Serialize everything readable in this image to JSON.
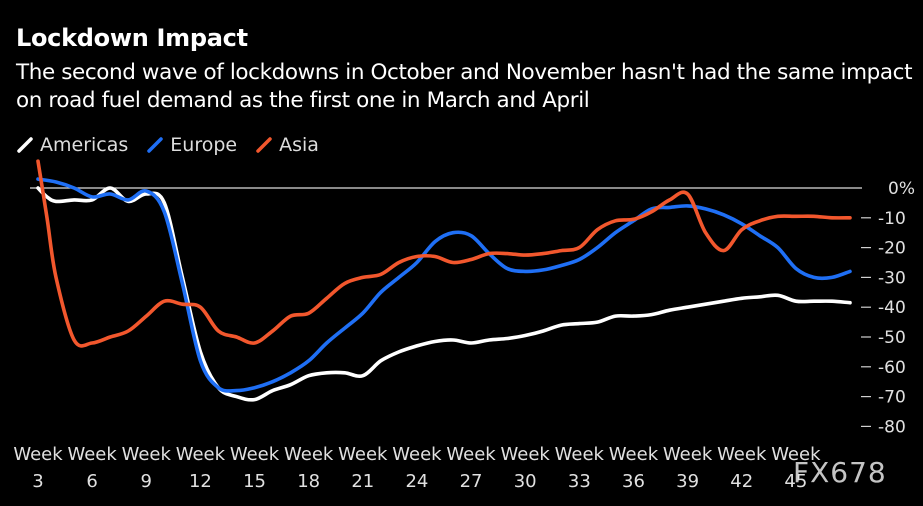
{
  "header": {
    "title": "Lockdown Impact",
    "subtitle": "The second wave of lockdowns in October and November hasn't had the same impact on road fuel demand as the first one in March and April"
  },
  "legend": [
    {
      "name": "Americas",
      "color": "#ffffff"
    },
    {
      "name": "Europe",
      "color": "#1f6ff5"
    },
    {
      "name": "Asia",
      "color": "#f2572d"
    }
  ],
  "watermark": "FX678",
  "chart_data": {
    "type": "line",
    "title": "Lockdown Impact",
    "xlabel": "",
    "ylabel": "",
    "x_tick_prefix": "Week",
    "x_ticks": [
      "3",
      "6",
      "9",
      "12",
      "15",
      "18",
      "21",
      "24",
      "27",
      "30",
      "33",
      "36",
      "39",
      "42",
      "45"
    ],
    "xlim": [
      3,
      48
    ],
    "ylim": [
      -80,
      5
    ],
    "y_ticks": [
      0,
      -10,
      -20,
      -30,
      -40,
      -50,
      -60,
      -70,
      -80
    ],
    "y_tick_labels": [
      "0%",
      "-10",
      "-20",
      "-30",
      "-40",
      "-50",
      "-60",
      "-70",
      "-80"
    ],
    "series": [
      {
        "name": "Americas",
        "color": "#ffffff",
        "x": [
          3,
          3.5,
          4,
          5,
          6,
          7,
          8,
          9,
          10,
          11,
          12,
          13,
          14,
          15,
          16,
          17,
          18,
          19,
          20,
          21,
          22,
          23,
          24,
          25,
          26,
          27,
          28,
          29,
          30,
          31,
          32,
          33,
          34,
          35,
          36,
          37,
          38,
          39,
          40,
          41,
          42,
          43,
          44,
          45,
          46,
          47,
          48
        ],
        "y": [
          0,
          -3,
          -4.5,
          -4,
          -4,
          0,
          -4.5,
          -2,
          -5,
          -30,
          -55,
          -67,
          -70,
          -71,
          -68,
          -66,
          -63,
          -62,
          -62,
          -63,
          -58,
          -55,
          -53,
          -51.5,
          -51,
          -52,
          -51,
          -50.5,
          -49.5,
          -48,
          -46,
          -45.5,
          -45,
          -43,
          -43,
          -42.5,
          -41,
          -40,
          -39,
          -38,
          -37,
          -36.5,
          -36,
          -38,
          -38,
          -38,
          -38.5
        ]
      },
      {
        "name": "Europe",
        "color": "#1f6ff5",
        "x": [
          3,
          4,
          5,
          6,
          7,
          8,
          9,
          10,
          11,
          12,
          13,
          14,
          15,
          16,
          17,
          18,
          19,
          20,
          21,
          22,
          23,
          24,
          25,
          26,
          27,
          28,
          29,
          30,
          31,
          32,
          33,
          34,
          35,
          36,
          37,
          38,
          39,
          40,
          41,
          42,
          43,
          44,
          45,
          46,
          47,
          48
        ],
        "y": [
          3,
          2,
          0,
          -3,
          -2,
          -4,
          -1,
          -8,
          -32,
          -58,
          -67,
          -68,
          -67,
          -65,
          -62,
          -58,
          -52,
          -47,
          -42,
          -35,
          -30,
          -25,
          -18,
          -15,
          -16,
          -22,
          -27,
          -28,
          -27.5,
          -26,
          -24,
          -20,
          -15,
          -11,
          -7,
          -6.5,
          -6,
          -7,
          -9,
          -12,
          -16,
          -20,
          -27,
          -30,
          -30,
          -28
        ]
      },
      {
        "name": "Asia",
        "color": "#f2572d",
        "x": [
          3,
          3.5,
          4,
          5,
          6,
          7,
          8,
          9,
          10,
          11,
          12,
          13,
          14,
          15,
          16,
          17,
          18,
          19,
          20,
          21,
          22,
          23,
          24,
          25,
          26,
          27,
          28,
          29,
          30,
          31,
          32,
          33,
          34,
          35,
          36,
          37,
          38,
          39,
          40,
          41,
          42,
          43,
          44,
          45,
          46,
          47,
          48
        ],
        "y": [
          9,
          -10,
          -30,
          -51,
          -52,
          -50,
          -48,
          -43,
          -38,
          -39,
          -40,
          -48,
          -50,
          -52,
          -48,
          -43,
          -42,
          -37,
          -32,
          -30,
          -29,
          -25,
          -23,
          -23,
          -25,
          -24,
          -22,
          -22,
          -22.5,
          -22,
          -21,
          -20,
          -14,
          -11,
          -10.5,
          -8,
          -4,
          -2,
          -15,
          -21,
          -14,
          -11,
          -9.5,
          -9.5,
          -9.5,
          -10,
          -10
        ]
      }
    ]
  }
}
